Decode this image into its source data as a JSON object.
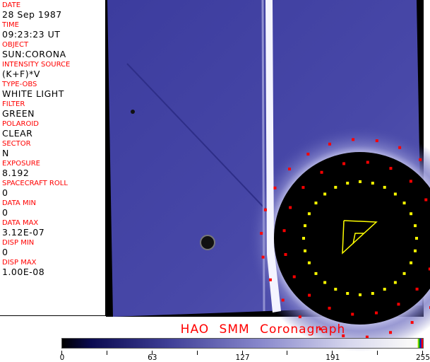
{
  "header_fields": [
    {
      "label": "DATE",
      "value": "28 Sep 1987"
    },
    {
      "label": "TIME",
      "value": "09:23:23 UT"
    },
    {
      "label": "OBJECT",
      "value": "SUN:CORONA"
    },
    {
      "label": "INTENSITY SOURCE",
      "value": "(K+F)*V"
    },
    {
      "label": "TYPE-OBS",
      "value": "WHITE LIGHT"
    },
    {
      "label": "FILTER",
      "value": "GREEN"
    },
    {
      "label": "POLAROID",
      "value": "CLEAR"
    },
    {
      "label": "SECTOR",
      "value": "N"
    },
    {
      "label": "EXPOSURE",
      "value": "8.192"
    },
    {
      "label": "SPACECRAFT ROLL",
      "value": "0"
    },
    {
      "label": "DATA MIN",
      "value": "0"
    },
    {
      "label": "DATA MAX",
      "value": "3.12E-07"
    },
    {
      "label": "DISP MIN",
      "value": "0"
    },
    {
      "label": "DISP MAX",
      "value": "1.00E-08"
    }
  ],
  "title": "HAO SMM Coronagraph",
  "colorbar": {
    "ticks": [
      "0",
      "63",
      "127",
      "191",
      "255"
    ],
    "min": 0,
    "max": 255
  },
  "colors": {
    "label": "#ff0000",
    "corona": "#3a3a9a",
    "marker_red": "#ff0000",
    "marker_yellow": "#ffff00"
  }
}
